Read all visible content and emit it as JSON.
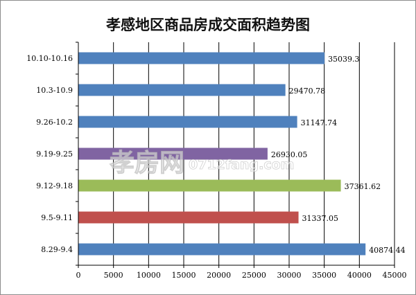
{
  "chart_data": {
    "type": "bar",
    "orientation": "horizontal",
    "title": "孝感地区商品房成交面积趋势图",
    "categories": [
      "10.10-10.16",
      "10.3-10.9",
      "9.26-10.2",
      "9.19-9.25",
      "9.12-9.18",
      "9.5-9.11",
      "8.29-9.4"
    ],
    "values": [
      35039.3,
      29470.78,
      31147.74,
      26930.05,
      37361.62,
      31337.05,
      40874.44
    ],
    "value_labels": [
      "35039.3",
      "29470.78",
      "31147.74",
      "26930.05",
      "37361.62",
      "31337.05",
      "40874.44"
    ],
    "bar_colors": [
      "#4f81bd",
      "#4f81bd",
      "#4f81bd",
      "#8064a2",
      "#9bbb59",
      "#c0504d",
      "#4f81bd"
    ],
    "xlim": [
      0,
      45000
    ],
    "x_ticks": [
      0,
      5000,
      10000,
      15000,
      20000,
      25000,
      30000,
      35000,
      40000,
      45000
    ],
    "grid": "vertical",
    "legend": "none"
  },
  "watermark": {
    "brand": "孝房网",
    "site": "0712fang.com"
  }
}
